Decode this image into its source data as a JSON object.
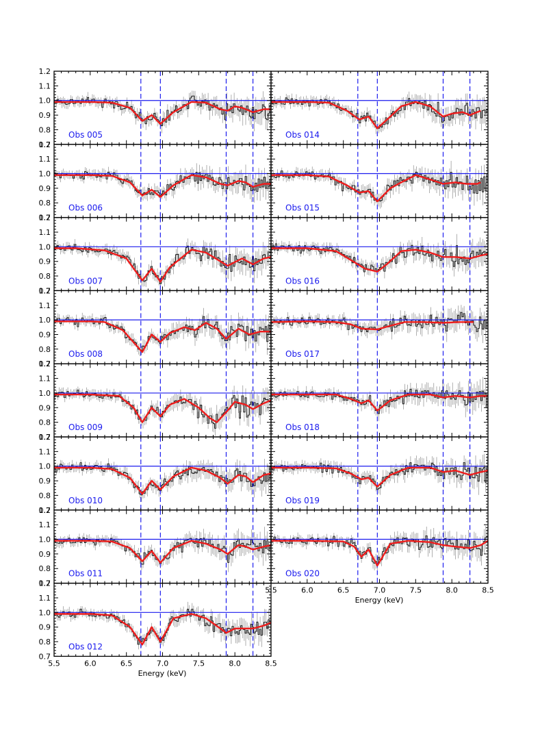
{
  "colors": {
    "model": "#ee1c1c",
    "continuum": "#1a1aee",
    "line_markers": "#1a1aee",
    "data": "#000000",
    "obs_label": "#1a1aee"
  },
  "chart_data": {
    "type": "line",
    "layout": "multi-panel grid, 2 columns (8 panels left, 7 panels right)",
    "xlabel": "Energy (keV)",
    "xlim": [
      5.5,
      8.5
    ],
    "ylim": [
      0.7,
      1.2
    ],
    "x_ticks": [
      "5.5",
      "6.0",
      "6.5",
      "7.0",
      "7.5",
      "8.0",
      "8.5"
    ],
    "y_ticks": [
      "0.7",
      "0.8",
      "0.9",
      "1.0",
      "1.1",
      "1.2"
    ],
    "continuum_level": 1.0,
    "line_markers_keV": [
      6.7,
      6.97,
      7.88,
      8.25
    ],
    "series_style": {
      "data": "black histogram with error bars",
      "model": "red smooth curve",
      "continuum": "horizontal blue line at 1.0",
      "line_markers": "vertical blue dashed lines"
    },
    "panels": [
      {
        "label": "Obs 005",
        "col": 0,
        "model": [
          [
            5.5,
            0.99
          ],
          [
            6.0,
            0.99
          ],
          [
            6.3,
            0.985
          ],
          [
            6.55,
            0.95
          ],
          [
            6.72,
            0.86
          ],
          [
            6.85,
            0.9
          ],
          [
            6.97,
            0.84
          ],
          [
            7.15,
            0.92
          ],
          [
            7.4,
            0.99
          ],
          [
            7.6,
            0.985
          ],
          [
            7.8,
            0.94
          ],
          [
            7.9,
            0.93
          ],
          [
            8.0,
            0.96
          ],
          [
            8.1,
            0.95
          ],
          [
            8.25,
            0.92
          ],
          [
            8.4,
            0.94
          ],
          [
            8.5,
            0.94
          ]
        ]
      },
      {
        "label": "Obs 006",
        "col": 0,
        "model": [
          [
            5.5,
            0.99
          ],
          [
            6.0,
            0.99
          ],
          [
            6.3,
            0.985
          ],
          [
            6.55,
            0.94
          ],
          [
            6.72,
            0.85
          ],
          [
            6.85,
            0.89
          ],
          [
            6.97,
            0.84
          ],
          [
            7.15,
            0.92
          ],
          [
            7.4,
            0.99
          ],
          [
            7.6,
            0.975
          ],
          [
            7.8,
            0.93
          ],
          [
            7.9,
            0.92
          ],
          [
            8.05,
            0.95
          ],
          [
            8.15,
            0.94
          ],
          [
            8.25,
            0.91
          ],
          [
            8.4,
            0.93
          ],
          [
            8.5,
            0.93
          ]
        ]
      },
      {
        "label": "Obs 007",
        "col": 0,
        "model": [
          [
            5.5,
            0.99
          ],
          [
            5.8,
            0.99
          ],
          [
            6.2,
            0.975
          ],
          [
            6.5,
            0.92
          ],
          [
            6.72,
            0.77
          ],
          [
            6.85,
            0.85
          ],
          [
            6.97,
            0.76
          ],
          [
            7.1,
            0.86
          ],
          [
            7.4,
            0.98
          ],
          [
            7.6,
            0.96
          ],
          [
            7.8,
            0.9
          ],
          [
            7.9,
            0.87
          ],
          [
            8.1,
            0.92
          ],
          [
            8.25,
            0.88
          ],
          [
            8.4,
            0.92
          ],
          [
            8.5,
            0.93
          ]
        ]
      },
      {
        "label": "Obs 008",
        "col": 0,
        "model": [
          [
            5.5,
            0.99
          ],
          [
            6.0,
            0.99
          ],
          [
            6.2,
            0.985
          ],
          [
            6.45,
            0.93
          ],
          [
            6.72,
            0.78
          ],
          [
            6.85,
            0.9
          ],
          [
            6.97,
            0.85
          ],
          [
            7.1,
            0.91
          ],
          [
            7.3,
            0.95
          ],
          [
            7.45,
            0.93
          ],
          [
            7.6,
            0.98
          ],
          [
            7.75,
            0.94
          ],
          [
            7.88,
            0.87
          ],
          [
            8.05,
            0.94
          ],
          [
            8.2,
            0.9
          ],
          [
            8.35,
            0.92
          ],
          [
            8.5,
            0.92
          ]
        ]
      },
      {
        "label": "Obs 009",
        "col": 0,
        "model": [
          [
            5.5,
            0.99
          ],
          [
            6.0,
            0.99
          ],
          [
            6.4,
            0.98
          ],
          [
            6.6,
            0.9
          ],
          [
            6.72,
            0.8
          ],
          [
            6.85,
            0.9
          ],
          [
            6.97,
            0.84
          ],
          [
            7.1,
            0.92
          ],
          [
            7.3,
            0.96
          ],
          [
            7.5,
            0.9
          ],
          [
            7.65,
            0.83
          ],
          [
            7.75,
            0.8
          ],
          [
            7.9,
            0.88
          ],
          [
            8.0,
            0.94
          ],
          [
            8.15,
            0.92
          ],
          [
            8.25,
            0.89
          ],
          [
            8.4,
            0.93
          ],
          [
            8.5,
            0.95
          ]
        ]
      },
      {
        "label": "Obs 010",
        "col": 0,
        "model": [
          [
            5.5,
            0.99
          ],
          [
            6.0,
            0.99
          ],
          [
            6.3,
            0.98
          ],
          [
            6.55,
            0.92
          ],
          [
            6.72,
            0.81
          ],
          [
            6.85,
            0.9
          ],
          [
            6.97,
            0.84
          ],
          [
            7.15,
            0.93
          ],
          [
            7.4,
            0.99
          ],
          [
            7.6,
            0.97
          ],
          [
            7.8,
            0.92
          ],
          [
            7.9,
            0.88
          ],
          [
            8.05,
            0.94
          ],
          [
            8.15,
            0.93
          ],
          [
            8.25,
            0.89
          ],
          [
            8.4,
            0.94
          ],
          [
            8.5,
            0.95
          ]
        ]
      },
      {
        "label": "Obs 011",
        "col": 0,
        "model": [
          [
            5.5,
            0.99
          ],
          [
            6.0,
            0.99
          ],
          [
            6.3,
            0.985
          ],
          [
            6.55,
            0.94
          ],
          [
            6.72,
            0.85
          ],
          [
            6.85,
            0.92
          ],
          [
            6.97,
            0.84
          ],
          [
            7.15,
            0.94
          ],
          [
            7.4,
            0.99
          ],
          [
            7.6,
            0.97
          ],
          [
            7.8,
            0.93
          ],
          [
            7.9,
            0.9
          ],
          [
            8.05,
            0.96
          ],
          [
            8.15,
            0.95
          ],
          [
            8.25,
            0.93
          ],
          [
            8.4,
            0.95
          ],
          [
            8.5,
            0.96
          ]
        ]
      },
      {
        "label": "Obs 012",
        "col": 0,
        "model": [
          [
            5.5,
            0.99
          ],
          [
            6.0,
            0.99
          ],
          [
            6.3,
            0.98
          ],
          [
            6.55,
            0.9
          ],
          [
            6.72,
            0.78
          ],
          [
            6.85,
            0.9
          ],
          [
            6.97,
            0.8
          ],
          [
            7.15,
            0.96
          ],
          [
            7.4,
            0.99
          ],
          [
            7.6,
            0.96
          ],
          [
            7.8,
            0.89
          ],
          [
            7.88,
            0.86
          ],
          [
            8.0,
            0.89
          ],
          [
            8.25,
            0.89
          ],
          [
            8.4,
            0.91
          ],
          [
            8.5,
            0.93
          ]
        ]
      },
      {
        "label": "Obs 014",
        "col": 1,
        "model": [
          [
            5.5,
            0.99
          ],
          [
            6.0,
            0.99
          ],
          [
            6.3,
            0.985
          ],
          [
            6.55,
            0.93
          ],
          [
            6.72,
            0.87
          ],
          [
            6.85,
            0.89
          ],
          [
            6.97,
            0.81
          ],
          [
            7.15,
            0.89
          ],
          [
            7.3,
            0.96
          ],
          [
            7.5,
            0.99
          ],
          [
            7.7,
            0.96
          ],
          [
            7.88,
            0.89
          ],
          [
            8.0,
            0.91
          ],
          [
            8.15,
            0.92
          ],
          [
            8.25,
            0.9
          ],
          [
            8.4,
            0.93
          ]
        ]
      },
      {
        "label": "Obs 015",
        "col": 1,
        "model": [
          [
            5.5,
            0.99
          ],
          [
            6.0,
            0.99
          ],
          [
            6.3,
            0.98
          ],
          [
            6.55,
            0.92
          ],
          [
            6.72,
            0.87
          ],
          [
            6.85,
            0.88
          ],
          [
            6.97,
            0.81
          ],
          [
            7.15,
            0.9
          ],
          [
            7.3,
            0.94
          ],
          [
            7.5,
            0.99
          ],
          [
            7.7,
            0.96
          ],
          [
            7.88,
            0.93
          ],
          [
            8.05,
            0.94
          ],
          [
            8.2,
            0.93
          ],
          [
            8.35,
            0.93
          ],
          [
            8.4,
            0.94
          ]
        ]
      },
      {
        "label": "Obs 016",
        "col": 1,
        "model": [
          [
            5.5,
            0.99
          ],
          [
            6.0,
            0.99
          ],
          [
            6.4,
            0.97
          ],
          [
            6.6,
            0.91
          ],
          [
            6.8,
            0.85
          ],
          [
            6.97,
            0.83
          ],
          [
            7.1,
            0.88
          ],
          [
            7.3,
            0.97
          ],
          [
            7.5,
            0.98
          ],
          [
            7.7,
            0.96
          ],
          [
            7.88,
            0.93
          ],
          [
            8.05,
            0.93
          ],
          [
            8.25,
            0.92
          ],
          [
            8.4,
            0.94
          ],
          [
            8.5,
            0.95
          ]
        ]
      },
      {
        "label": "Obs 017",
        "col": 1,
        "model": [
          [
            5.5,
            0.985
          ],
          [
            6.0,
            0.99
          ],
          [
            6.4,
            0.985
          ],
          [
            6.6,
            0.97
          ],
          [
            6.75,
            0.94
          ],
          [
            6.97,
            0.935
          ],
          [
            7.15,
            0.96
          ],
          [
            7.35,
            0.985
          ],
          [
            7.6,
            0.985
          ],
          [
            7.88,
            0.98
          ],
          [
            8.1,
            0.985
          ],
          [
            8.3,
            0.985
          ]
        ]
      },
      {
        "label": "Obs 018",
        "col": 1,
        "model": [
          [
            5.5,
            0.99
          ],
          [
            6.0,
            0.99
          ],
          [
            6.4,
            0.99
          ],
          [
            6.6,
            0.96
          ],
          [
            6.75,
            0.93
          ],
          [
            6.85,
            0.95
          ],
          [
            6.97,
            0.88
          ],
          [
            7.15,
            0.95
          ],
          [
            7.4,
            0.99
          ],
          [
            7.7,
            0.99
          ],
          [
            7.88,
            0.97
          ],
          [
            8.05,
            0.98
          ],
          [
            8.25,
            0.97
          ],
          [
            8.4,
            0.98
          ],
          [
            8.5,
            0.98
          ]
        ]
      },
      {
        "label": "Obs 019",
        "col": 1,
        "model": [
          [
            5.5,
            0.99
          ],
          [
            6.0,
            0.99
          ],
          [
            6.4,
            0.985
          ],
          [
            6.6,
            0.95
          ],
          [
            6.75,
            0.91
          ],
          [
            6.85,
            0.92
          ],
          [
            6.97,
            0.86
          ],
          [
            7.15,
            0.94
          ],
          [
            7.4,
            0.99
          ],
          [
            7.7,
            0.99
          ],
          [
            7.88,
            0.96
          ],
          [
            8.05,
            0.97
          ],
          [
            8.25,
            0.94
          ],
          [
            8.4,
            0.96
          ],
          [
            8.5,
            0.97
          ]
        ]
      },
      {
        "label": "Obs 020",
        "col": 1,
        "model": [
          [
            5.5,
            0.99
          ],
          [
            6.0,
            0.99
          ],
          [
            6.5,
            0.985
          ],
          [
            6.65,
            0.95
          ],
          [
            6.75,
            0.88
          ],
          [
            6.85,
            0.93
          ],
          [
            6.97,
            0.82
          ],
          [
            7.15,
            0.97
          ],
          [
            7.4,
            0.99
          ],
          [
            7.7,
            0.98
          ],
          [
            7.88,
            0.96
          ],
          [
            8.05,
            0.95
          ],
          [
            8.25,
            0.94
          ],
          [
            8.4,
            0.96
          ],
          [
            8.5,
            0.99
          ]
        ]
      }
    ]
  }
}
